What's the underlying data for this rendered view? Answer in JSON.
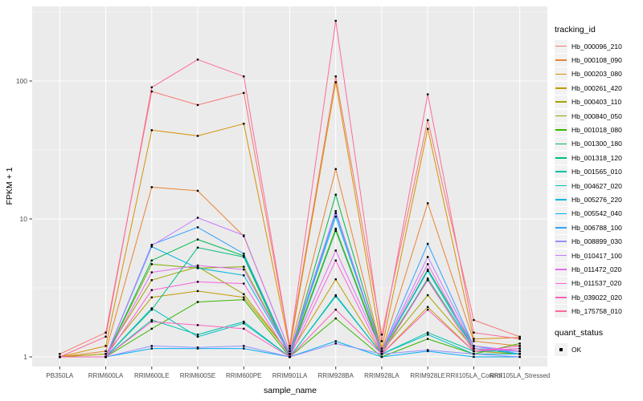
{
  "figure": {
    "background": "#ffffff",
    "panel_background": "#ebebeb",
    "gridline_color": "#ffffff",
    "axis_text_color": "#4d4d4d",
    "point_color": "#000000"
  },
  "legend": {
    "title": "tracking_id"
  },
  "legend2": {
    "title": "quant_status",
    "items": [
      {
        "label": "OK"
      }
    ]
  },
  "chart_data": {
    "type": "line",
    "title": "",
    "xlabel": "sample_name",
    "ylabel": "FPKM + 1",
    "y_scale": "log10",
    "y_ticks": [
      1,
      10,
      100
    ],
    "y_minor_ticks": [
      3.162,
      31.62,
      316.2
    ],
    "ylim": [
      0.85,
      350
    ],
    "grid": true,
    "legend_position": "right",
    "point_shape": "square",
    "categories": [
      "PB350LA",
      "RRIM600LA",
      "RRIM600LE",
      "RRIM600SE",
      "RRIM600PE",
      "RRIM901LA",
      "RRIM928BA",
      "RRIM928LA",
      "RRIM928LE",
      "RRII105LA_Control",
      "RRII105LA_Stressed"
    ],
    "series": [
      {
        "name": "Hb_000096_210",
        "color": "#F8766D",
        "values": [
          1.05,
          1.5,
          84,
          67,
          82,
          1.2,
          108,
          1.45,
          52,
          1.85,
          1.4
        ]
      },
      {
        "name": "Hb_000108_090",
        "color": "#EA8331",
        "values": [
          1.0,
          1.1,
          17,
          16,
          7.5,
          1.1,
          23,
          1.1,
          13,
          1.3,
          1.2
        ]
      },
      {
        "name": "Hb_000203_080",
        "color": "#D89000",
        "values": [
          1.0,
          1.2,
          44,
          40,
          49,
          1.15,
          98,
          1.15,
          45,
          1.35,
          1.38
        ]
      },
      {
        "name": "Hb_000261_420",
        "color": "#C09B00",
        "values": [
          1.0,
          1.05,
          2.7,
          3.0,
          2.7,
          1.05,
          3.65,
          1.05,
          2.3,
          1.1,
          1.05
        ]
      },
      {
        "name": "Hb_000403_110",
        "color": "#A3A500",
        "values": [
          1.0,
          1.05,
          3.6,
          4.5,
          2.85,
          1.05,
          8.2,
          1.1,
          2.8,
          1.15,
          1.1
        ]
      },
      {
        "name": "Hb_000840_050",
        "color": "#7CAE00",
        "values": [
          1.0,
          1.0,
          4.7,
          4.4,
          4.5,
          1.05,
          8.5,
          1.1,
          3.6,
          1.1,
          1.15
        ]
      },
      {
        "name": "Hb_001018_080",
        "color": "#39B600",
        "values": [
          1.0,
          1.0,
          1.6,
          2.5,
          2.6,
          1.0,
          1.9,
          1.0,
          1.35,
          1.05,
          1.25
        ]
      },
      {
        "name": "Hb_001300_180",
        "color": "#00BB4E",
        "values": [
          1.0,
          1.0,
          5.0,
          7.1,
          5.4,
          1.05,
          15,
          1.1,
          4.3,
          1.2,
          1.1
        ]
      },
      {
        "name": "Hb_001318_120",
        "color": "#00BF7D",
        "values": [
          1.0,
          1.0,
          2.2,
          6.2,
          5.3,
          1.0,
          8.3,
          1.05,
          3.7,
          1.15,
          1.05
        ]
      },
      {
        "name": "Hb_001565_010",
        "color": "#00C1A3",
        "values": [
          1.0,
          1.0,
          1.85,
          1.45,
          1.8,
          1.0,
          2.8,
          1.05,
          1.5,
          1.1,
          1.1
        ]
      },
      {
        "name": "Hb_004627_020",
        "color": "#00BFC4",
        "values": [
          1.0,
          1.0,
          2.25,
          1.4,
          1.75,
          1.0,
          2.75,
          1.05,
          1.45,
          1.05,
          1.05
        ]
      },
      {
        "name": "Hb_005276_220",
        "color": "#00BAE0",
        "values": [
          1.0,
          1.0,
          6.3,
          4.4,
          3.9,
          1.05,
          10.4,
          1.1,
          4.2,
          1.15,
          1.1
        ]
      },
      {
        "name": "Hb_005542_040",
        "color": "#00B0F6",
        "values": [
          1.0,
          1.0,
          1.15,
          1.15,
          1.15,
          1.0,
          1.3,
          1.0,
          1.1,
          1.0,
          1.0
        ]
      },
      {
        "name": "Hb_006788_100",
        "color": "#35A2FF",
        "values": [
          1.0,
          1.0,
          6.5,
          8.7,
          5.6,
          1.05,
          11,
          1.1,
          6.6,
          1.2,
          1.05
        ]
      },
      {
        "name": "Hb_008899_030",
        "color": "#9590FF",
        "values": [
          1.0,
          1.0,
          1.2,
          1.17,
          1.2,
          1.0,
          1.25,
          1.05,
          1.12,
          1.05,
          1.0
        ]
      },
      {
        "name": "Hb_010417_100",
        "color": "#C77CFF",
        "values": [
          1.0,
          1.0,
          6.4,
          10.2,
          7.6,
          1.1,
          11.4,
          1.1,
          5.3,
          1.2,
          1.1
        ]
      },
      {
        "name": "Hb_011472_020",
        "color": "#E76BF3",
        "values": [
          1.0,
          1.0,
          4.1,
          4.6,
          4.3,
          1.05,
          5.9,
          1.1,
          4.7,
          1.15,
          1.1
        ]
      },
      {
        "name": "Hb_011537_020",
        "color": "#FA62DB",
        "values": [
          1.0,
          1.0,
          3.05,
          3.5,
          3.4,
          1.0,
          5.0,
          1.05,
          3.6,
          1.1,
          1.15
        ]
      },
      {
        "name": "Hb_039022_020",
        "color": "#FF62BC",
        "values": [
          1.0,
          1.0,
          1.8,
          1.7,
          1.6,
          1.0,
          2.2,
          1.05,
          2.2,
          1.1,
          1.2
        ]
      },
      {
        "name": "Hb_175758_010",
        "color": "#FF6A98",
        "values": [
          1.0,
          1.4,
          90,
          143,
          108,
          1.2,
          273,
          1.3,
          80,
          1.5,
          1.35
        ]
      }
    ]
  }
}
